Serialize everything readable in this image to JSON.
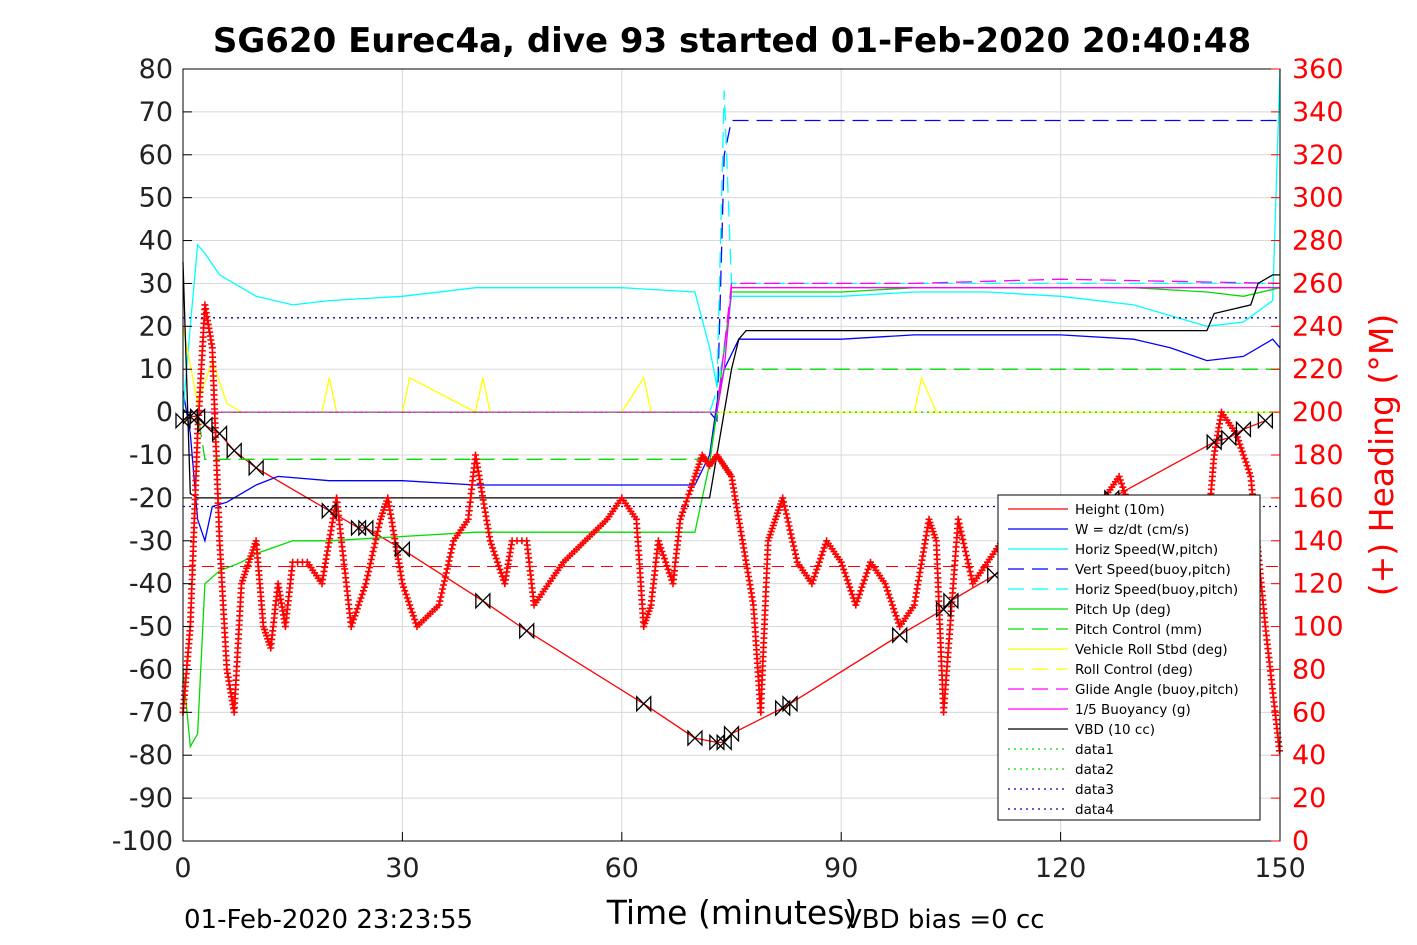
{
  "chart_data": {
    "type": "line",
    "title": "SG620 Eurec4a, dive 93 started 01-Feb-2020 20:40:48",
    "xlabel": "Time (minutes)",
    "ylabel_right": "(+) Heading (°M)",
    "footer_left": "01-Feb-2020 23:23:55",
    "footer_right": "VBD bias =0 cc",
    "xlim": [
      0,
      150
    ],
    "ylim": [
      -100,
      80
    ],
    "ylim_right": [
      0,
      360
    ],
    "xticks": [
      0,
      30,
      60,
      90,
      120,
      150
    ],
    "yticks": [
      80,
      70,
      60,
      50,
      40,
      30,
      20,
      10,
      0,
      -10,
      -20,
      -30,
      -40,
      -50,
      -60,
      -70,
      -80,
      -90,
      -100
    ],
    "yticks_right": [
      360,
      340,
      320,
      300,
      280,
      260,
      240,
      220,
      200,
      180,
      160,
      140,
      120,
      100,
      80,
      60,
      40,
      20,
      0
    ],
    "grid": true,
    "legend_position": "bottom-right",
    "colors": {
      "height": "#ff0000",
      "w": "#0000ff",
      "horiz_w": "#00ffff",
      "vert_buoy": "#0000ff",
      "horiz_buoy": "#00ffff",
      "pitch": "#00dd00",
      "pitch_ctrl": "#00dd00",
      "roll": "#ffff00",
      "roll_ctrl": "#ffff00",
      "glide": "#ff00ff",
      "buoy": "#ff00ff",
      "vbd": "#000000",
      "heading": "#ff0000"
    },
    "series": [
      {
        "name": "Height (10m)",
        "key": "height",
        "style": "solid",
        "marker": "bowtie",
        "x": [
          0,
          1,
          2,
          3,
          5,
          7,
          10,
          20,
          24,
          25,
          30,
          41,
          47,
          63,
          70,
          73,
          74,
          75,
          82,
          83,
          98,
          104,
          105,
          111,
          127,
          141,
          143,
          145,
          148
        ],
        "y": [
          -2,
          -1,
          -1,
          -3,
          -5,
          -9,
          -13,
          -23,
          -27,
          -27,
          -32,
          -44,
          -51,
          -68,
          -76,
          -77,
          -77,
          -75,
          -69,
          -68,
          -52,
          -46,
          -44,
          -38,
          -20,
          -7,
          -6,
          -4,
          -2
        ]
      },
      {
        "name": "W = dz/dt (cm/s)",
        "key": "w",
        "style": "solid",
        "x": [
          0,
          1,
          2,
          3,
          4,
          6,
          8,
          10,
          13,
          20,
          30,
          40,
          50,
          60,
          70,
          72,
          73,
          74,
          76,
          80,
          90,
          100,
          110,
          120,
          130,
          135,
          140,
          145,
          149,
          150
        ],
        "y": [
          5,
          -5,
          -25,
          -30,
          -22,
          -21,
          -19,
          -17,
          -15,
          -16,
          -16,
          -17,
          -17,
          -17,
          -17,
          -10,
          2,
          10,
          17,
          17,
          17,
          18,
          18,
          18,
          17,
          15,
          12,
          13,
          17,
          15
        ]
      },
      {
        "name": "Horiz Speed(W,pitch)",
        "key": "horiz_w",
        "style": "solid",
        "x": [
          0,
          1,
          2,
          3,
          5,
          7,
          10,
          15,
          20,
          30,
          40,
          50,
          60,
          70,
          72,
          73,
          74,
          75,
          80,
          90,
          100,
          110,
          120,
          130,
          140,
          145,
          149,
          150
        ],
        "y": [
          0,
          20,
          39,
          37,
          32,
          30,
          27,
          25,
          26,
          27,
          29,
          29,
          29,
          28,
          15,
          6,
          14,
          27,
          27,
          27,
          28,
          28,
          27,
          25,
          20,
          21,
          26,
          80
        ]
      },
      {
        "name": "Vert Speed(buoy,pitch)",
        "key": "vert_buoy",
        "style": "dashed",
        "x": [
          0,
          70,
          72,
          73,
          74,
          75,
          150
        ],
        "y": [
          0,
          0,
          0,
          -2,
          60,
          68,
          68
        ]
      },
      {
        "name": "Horiz Speed(buoy,pitch)",
        "key": "horiz_buoy",
        "style": "dashed",
        "x": [
          0,
          70,
          72,
          73,
          74,
          75,
          150
        ],
        "y": [
          0,
          0,
          0,
          5,
          75,
          30,
          30
        ]
      },
      {
        "name": "Pitch Up (deg)",
        "key": "pitch",
        "style": "solid",
        "x": [
          0,
          1,
          2,
          3,
          5,
          8,
          10,
          15,
          20,
          30,
          40,
          50,
          60,
          70,
          72,
          73,
          74,
          75,
          80,
          90,
          100,
          110,
          120,
          130,
          140,
          145,
          150
        ],
        "y": [
          -60,
          -78,
          -75,
          -40,
          -37,
          -35,
          -33,
          -30,
          -30,
          -29,
          -28,
          -28,
          -28,
          -28,
          -12,
          0,
          15,
          28,
          28,
          28,
          29,
          29,
          29,
          29,
          28,
          27,
          29
        ]
      },
      {
        "name": "Pitch Control (mm)",
        "key": "pitch_ctrl",
        "style": "dashed",
        "x": [
          0,
          2,
          3,
          72,
          73,
          74,
          150
        ],
        "y": [
          0,
          0,
          -11,
          -11,
          0,
          10,
          10
        ]
      },
      {
        "name": "Vehicle Roll Stbd (deg)",
        "key": "roll",
        "style": "solid",
        "x": [
          0,
          2,
          4,
          6,
          8,
          10,
          19,
          20,
          21,
          30,
          31,
          40,
          41,
          42,
          50,
          60,
          63,
          64,
          65,
          70,
          75,
          80,
          90,
          100,
          101,
          103,
          110,
          120,
          130,
          140,
          150
        ],
        "y": [
          20,
          2,
          12,
          2,
          0,
          0,
          0,
          8,
          0,
          0,
          8,
          0,
          8,
          0,
          0,
          0,
          8,
          0,
          0,
          0,
          0,
          0,
          0,
          0,
          8,
          0,
          0,
          0,
          0,
          0,
          0
        ]
      },
      {
        "name": "Roll Control (deg)",
        "key": "roll_ctrl",
        "style": "dashed",
        "x": [
          0,
          150
        ],
        "y": [
          0,
          0
        ]
      },
      {
        "name": "Glide Angle (buoy,pitch)",
        "key": "glide",
        "style": "dashed",
        "x": [
          0,
          72,
          73,
          74,
          75,
          100,
          120,
          150
        ],
        "y": [
          0,
          0,
          0,
          15,
          30,
          30,
          31,
          30
        ]
      },
      {
        "name": "1/5 Buoyancy (g)",
        "key": "buoy",
        "style": "solid",
        "x": [
          0,
          73,
          74,
          75,
          150
        ],
        "y": [
          0,
          0,
          10,
          29,
          29
        ]
      },
      {
        "name": "VBD (10 cc)",
        "key": "vbd",
        "style": "solid",
        "x": [
          0,
          1,
          2,
          72,
          73,
          74,
          75,
          76,
          77,
          78,
          140,
          141,
          146,
          147,
          149,
          150
        ],
        "y": [
          35,
          -19,
          -20,
          -20,
          -10,
          0,
          10,
          17,
          19,
          19,
          19,
          23,
          25,
          30,
          32,
          32
        ]
      },
      {
        "name": "data1",
        "key": "data1",
        "style": "dotted",
        "color": "#00dd00",
        "x": [
          0,
          150
        ],
        "y": [
          0,
          0
        ]
      },
      {
        "name": "data2",
        "key": "data2",
        "style": "dotted",
        "color": "#00dd00",
        "x": [
          0,
          150
        ],
        "y": [
          0,
          0
        ]
      },
      {
        "name": "data3",
        "key": "data3",
        "style": "dotted",
        "color": "#0000aa",
        "x": [
          0,
          150
        ],
        "y": [
          22,
          22
        ]
      },
      {
        "name": "data4",
        "key": "data4",
        "style": "dotted",
        "color": "#0000aa",
        "x": [
          0,
          150
        ],
        "y": [
          -22,
          -22
        ]
      }
    ],
    "heading_series": {
      "x": [
        0,
        1,
        2,
        3,
        4,
        5,
        6,
        7,
        8,
        9,
        10,
        11,
        12,
        13,
        14,
        15,
        17,
        19,
        21,
        23,
        25,
        27,
        28,
        30,
        32,
        35,
        37,
        39,
        40,
        42,
        44,
        45,
        47,
        48,
        50,
        52,
        55,
        58,
        60,
        62,
        63,
        64,
        65,
        67,
        68,
        70,
        71,
        72,
        73,
        74,
        75,
        76,
        78,
        79,
        80,
        81,
        82,
        84,
        86,
        88,
        90,
        92,
        94,
        96,
        98,
        100,
        102,
        103,
        104,
        106,
        108,
        110,
        112,
        114,
        116,
        118,
        120,
        122,
        124,
        126,
        128,
        130,
        134,
        136,
        138,
        140,
        141,
        142,
        144,
        146,
        148,
        150
      ],
      "y": [
        60,
        100,
        190,
        250,
        230,
        140,
        80,
        60,
        120,
        130,
        140,
        100,
        90,
        120,
        100,
        130,
        130,
        120,
        160,
        100,
        120,
        150,
        160,
        120,
        100,
        110,
        140,
        150,
        180,
        140,
        120,
        140,
        140,
        110,
        120,
        130,
        140,
        150,
        160,
        150,
        100,
        110,
        140,
        120,
        150,
        170,
        180,
        175,
        180,
        175,
        170,
        150,
        110,
        60,
        140,
        150,
        160,
        130,
        120,
        140,
        130,
        110,
        130,
        120,
        100,
        110,
        150,
        140,
        60,
        150,
        120,
        130,
        140,
        150,
        100,
        110,
        120,
        140,
        150,
        160,
        170,
        150,
        140,
        150,
        130,
        140,
        180,
        200,
        190,
        170,
        100,
        40
      ]
    },
    "dashed_ref": {
      "y": -36,
      "color": "#ff0000"
    }
  }
}
